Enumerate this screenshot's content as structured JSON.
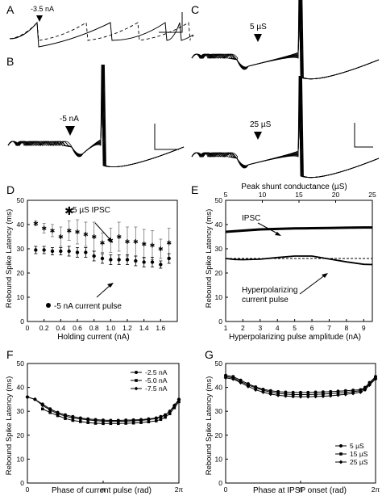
{
  "panel_labels": {
    "A": "A",
    "B": "B",
    "C": "C",
    "D": "D",
    "E": "E",
    "F": "F",
    "G": "G"
  },
  "annotations": {
    "a_current": "-3.5 nA",
    "b_current": "-5 nA",
    "c_top": "5 µS",
    "c_bottom": "25 µS"
  },
  "chart_data": [
    {
      "panel": "A",
      "type": "line",
      "series": [
        {
          "style": "solid",
          "description": "spike train with reset after pulse",
          "color": "#000"
        },
        {
          "style": "dashed",
          "description": "control spike train",
          "color": "#000"
        }
      ]
    },
    {
      "panel": "B",
      "type": "line",
      "series": [
        {
          "style": "solid",
          "traces": 8
        }
      ]
    },
    {
      "panel": "C",
      "type": "line",
      "series": [
        {
          "style": "solid",
          "traces": 8
        }
      ]
    },
    {
      "panel": "D",
      "type": "scatter",
      "xlabel": "Holding current (nA)",
      "ylabel": "Rebound Spike Latency (ms)",
      "xlim": [
        0,
        1.8
      ],
      "ylim": [
        0,
        50
      ],
      "xticks": [
        "0",
        "0.2",
        "0.4",
        "0.6",
        "0.8",
        "1.0",
        "1.2",
        "1.4",
        "1.6"
      ],
      "yticks": [
        "0",
        "10",
        "20",
        "30",
        "40",
        "50"
      ],
      "legend": [
        "5 µS IPSC",
        "-5 nA current pulse"
      ],
      "x": [
        0.1,
        0.2,
        0.3,
        0.4,
        0.5,
        0.6,
        0.7,
        0.8,
        0.9,
        1.0,
        1.1,
        1.2,
        1.3,
        1.4,
        1.5,
        1.6,
        1.7
      ],
      "series": [
        {
          "name": "5 µS IPSC",
          "marker": "star",
          "values": [
            40.5,
            38.5,
            37.5,
            35,
            37.5,
            37,
            36,
            35,
            32.5,
            33.5,
            35,
            33,
            33,
            32,
            31.5,
            30,
            32.5
          ],
          "err": [
            1,
            2,
            2.5,
            4,
            4,
            5,
            5,
            6,
            4,
            5,
            6,
            6,
            6,
            6,
            6,
            4,
            6
          ]
        },
        {
          "name": "-5 nA current pulse",
          "marker": "circle",
          "values": [
            29.5,
            29.5,
            29,
            29,
            29,
            28.5,
            28.5,
            27,
            26,
            25.5,
            25.5,
            25.5,
            25,
            24.5,
            24.5,
            23.5,
            26
          ],
          "err": [
            1.5,
            1.5,
            1.5,
            1.5,
            2,
            2,
            2,
            2,
            2,
            2,
            2,
            2,
            2,
            2,
            2,
            1.5,
            2
          ]
        }
      ]
    },
    {
      "panel": "E",
      "type": "line",
      "xlabel": "Hyperpolarizing pulse amplitude (nA)",
      "x2label": "Peak shunt conductance (µS)",
      "ylabel": "Rebound Spike Latency (ms)",
      "xlim": [
        1,
        9.5
      ],
      "x2lim": [
        5,
        25
      ],
      "ylim": [
        0,
        50
      ],
      "xticks": [
        "1",
        "2",
        "3",
        "4",
        "5",
        "6",
        "7",
        "8",
        "9"
      ],
      "x2ticks": [
        "5",
        "10",
        "15",
        "20",
        "25"
      ],
      "yticks": [
        "0",
        "10",
        "20",
        "30",
        "40",
        "50"
      ],
      "labels": {
        "ipsc": "IPSC",
        "pulse_line1": "Hyperpolarizing",
        "pulse_line2": "current pulse"
      },
      "series": [
        {
          "name": "IPSC",
          "x": [
            1,
            2,
            3,
            4,
            5,
            6,
            7,
            8,
            9,
            9.5
          ],
          "values": [
            37,
            37.5,
            38,
            38.2,
            38.4,
            38.5,
            38.6,
            38.7,
            38.8,
            38.8
          ]
        },
        {
          "name": "Hyperpolarizing current pulse",
          "x": [
            1,
            1.5,
            2,
            3,
            4,
            5,
            6,
            7,
            8,
            9,
            9.5
          ],
          "values": [
            26,
            25.6,
            25.5,
            25.7,
            26.4,
            27,
            27,
            25.8,
            24.6,
            23.6,
            23.5
          ]
        },
        {
          "name": "reference",
          "style": "dashed",
          "x": [
            1,
            9.5
          ],
          "values": [
            26,
            26
          ]
        }
      ]
    },
    {
      "panel": "F",
      "type": "line",
      "xlabel": "Phase of current pulse (rad)",
      "ylabel": "Rebound Spike Latency (ms)",
      "ylim": [
        0,
        50
      ],
      "xticks": [
        "0",
        "π",
        "2π"
      ],
      "yticks": [
        "0",
        "10",
        "20",
        "30",
        "40",
        "50"
      ],
      "legend": [
        "-2.5 nA",
        "-5.0 nA",
        "-7.5 nA"
      ],
      "x_frac": [
        0,
        0.05,
        0.1,
        0.15,
        0.2,
        0.25,
        0.3,
        0.35,
        0.4,
        0.45,
        0.5,
        0.55,
        0.6,
        0.65,
        0.7,
        0.75,
        0.8,
        0.85,
        0.88,
        0.91,
        0.94,
        0.97,
        1.0
      ],
      "series": [
        {
          "name": "-2.5 nA",
          "values": [
            36,
            35,
            33,
            31,
            29.5,
            28.5,
            27.8,
            27.2,
            26.8,
            26.5,
            26.3,
            26.2,
            26.2,
            26.3,
            26.4,
            26.5,
            26.8,
            27.2,
            27.8,
            28.5,
            30,
            32,
            35
          ]
        },
        {
          "name": "-5.0 nA",
          "values": [
            null,
            null,
            31,
            29.5,
            28.2,
            27,
            26.2,
            25.7,
            25.3,
            25,
            24.9,
            24.9,
            24.9,
            25,
            25.1,
            25.3,
            25.6,
            26,
            26.6,
            27.5,
            29,
            31.5,
            34
          ]
        },
        {
          "name": "-7.5 nA",
          "values": [
            36,
            35,
            32.5,
            30.5,
            29,
            28,
            27.2,
            26.8,
            26.4,
            26.1,
            25.9,
            25.8,
            25.8,
            25.9,
            26,
            26.2,
            26.5,
            27,
            27.6,
            28.4,
            30,
            32.5,
            35
          ]
        }
      ]
    },
    {
      "panel": "G",
      "type": "line",
      "xlabel": "Phase at IPSP onset (rad)",
      "ylabel": "Rebound Spike Latency (ms)",
      "ylim": [
        0,
        50
      ],
      "xticks": [
        "0",
        "π",
        "2π"
      ],
      "yticks": [
        "0",
        "10",
        "20",
        "30",
        "40",
        "50"
      ],
      "legend": [
        "5 µS",
        "15 µS",
        "25 µS"
      ],
      "x_frac": [
        0,
        0.05,
        0.1,
        0.15,
        0.2,
        0.25,
        0.3,
        0.35,
        0.4,
        0.45,
        0.5,
        0.55,
        0.6,
        0.65,
        0.7,
        0.75,
        0.8,
        0.85,
        0.9,
        0.93,
        0.96,
        1.0
      ],
      "series": [
        {
          "name": "5 µS",
          "values": [
            45,
            44.5,
            43,
            41.5,
            40.2,
            39.2,
            38.6,
            38.2,
            38,
            37.9,
            37.9,
            37.9,
            38,
            38.1,
            38.2,
            38.4,
            38.6,
            38.8,
            39,
            40,
            42,
            44.5
          ]
        },
        {
          "name": "15 µS",
          "values": [
            44.5,
            44,
            42.5,
            41,
            39.8,
            38.8,
            38,
            37.5,
            37.2,
            37,
            37,
            37,
            37.1,
            37.2,
            37.4,
            37.6,
            37.9,
            38.2,
            38.6,
            39.5,
            41.5,
            44
          ]
        },
        {
          "name": "25 µS",
          "values": [
            44,
            43.5,
            42,
            40.4,
            39,
            38,
            37.2,
            36.7,
            36.4,
            36.2,
            36.1,
            36.1,
            36.2,
            36.3,
            36.5,
            36.8,
            37.1,
            37.5,
            38,
            39,
            41,
            43.5
          ]
        }
      ]
    }
  ]
}
